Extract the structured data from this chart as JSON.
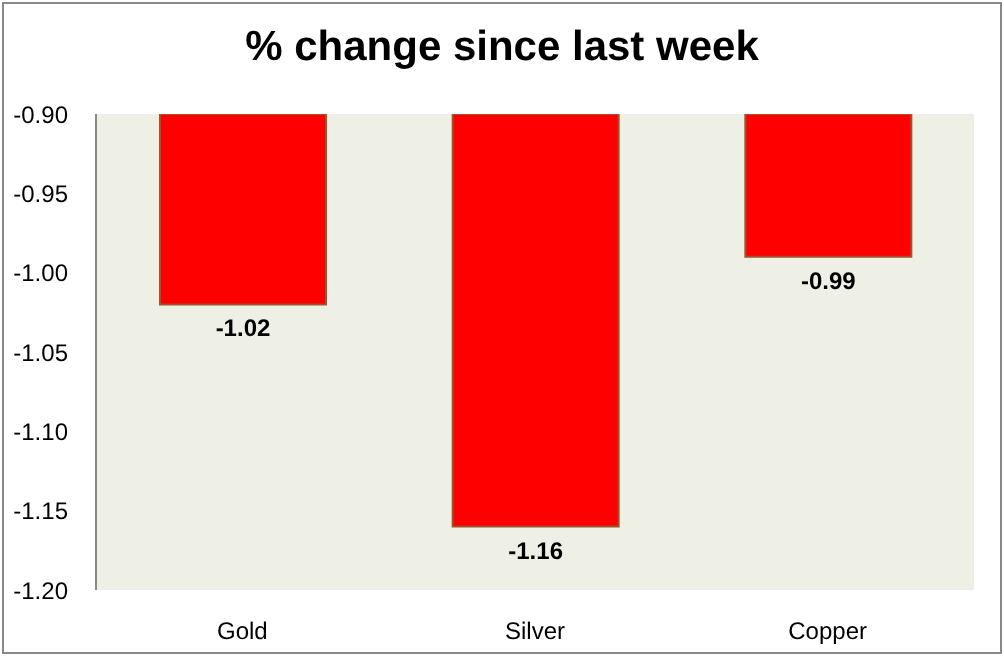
{
  "chart_data": {
    "type": "bar",
    "title": "% change since last week",
    "categories": [
      "Gold",
      "Silver",
      "Copper"
    ],
    "values": [
      -1.02,
      -1.16,
      -0.99
    ],
    "color": "#ff0000",
    "ylim": [
      -1.2,
      -0.9
    ],
    "yticks": [
      {
        "value": -0.9,
        "label": "-0.90"
      },
      {
        "value": -0.95,
        "label": "-0.95"
      },
      {
        "value": -1.0,
        "label": "-1.00"
      },
      {
        "value": -1.05,
        "label": "-1.05"
      },
      {
        "value": -1.1,
        "label": "-1.10"
      },
      {
        "value": -1.15,
        "label": "-1.15"
      },
      {
        "value": -1.2,
        "label": "-1.20"
      }
    ],
    "data_labels": true,
    "grid": false,
    "legend": false
  }
}
